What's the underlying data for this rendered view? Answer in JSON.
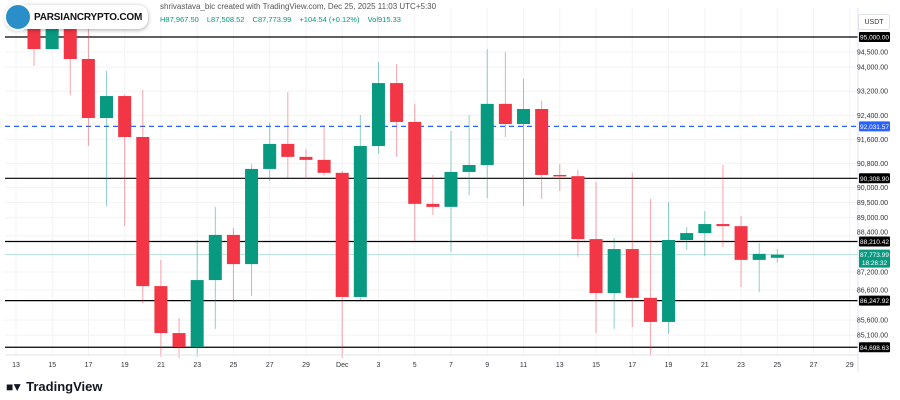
{
  "header": {
    "attribution": "shrivastava_bic created with TradingView.com, Dec 25, 2025 11:03 UTC+5:30",
    "ohlc": {
      "high": "H87,967.50",
      "low": "L87,508.52",
      "close": "C87,773.99",
      "change": "+104.54 (+0.12%)",
      "volume": "Vol915.33"
    }
  },
  "watermark": "PARSIANCRYPTO.COM",
  "footer_brand": "TradingView",
  "currency_button": "USDT",
  "colors": {
    "up": "#089981",
    "down": "#f23645",
    "level": "#000000",
    "dashed": "#2962ff",
    "current": "#089981"
  },
  "chart_data": {
    "type": "candlestick",
    "x_tick_labels": [
      "13",
      "15",
      "17",
      "19",
      "21",
      "23",
      "25",
      "27",
      "29",
      "Dec",
      "3",
      "5",
      "7",
      "9",
      "11",
      "13",
      "15",
      "17",
      "19",
      "21",
      "23",
      "25",
      "27",
      "29"
    ],
    "y_tick_labels": [
      "94,500.00",
      "94,000.00",
      "93,200.00",
      "92,400.00",
      "91,600.00",
      "90,800.00",
      "90,000.00",
      "89,500.00",
      "89,000.00",
      "88,400.00",
      "87,200.00",
      "86,600.00",
      "85,600.00",
      "85,100.00"
    ],
    "y_ticks": [
      94500,
      94000,
      93200,
      92400,
      91600,
      90800,
      90000,
      89500,
      89000,
      88400,
      87200,
      86600,
      85600,
      85100
    ],
    "ylim": [
      84200,
      96100
    ],
    "horizontal_levels": [
      {
        "value": 95000.0,
        "label": "95,000.00",
        "style": "solid"
      },
      {
        "value": 90308.9,
        "label": "90,308.90",
        "style": "solid"
      },
      {
        "value": 88210.42,
        "label": "88,210.42",
        "style": "solid"
      },
      {
        "value": 86247.92,
        "label": "86,247.92",
        "style": "solid"
      },
      {
        "value": 84698.63,
        "label": "84,698.63",
        "style": "solid"
      },
      {
        "value": 92031.57,
        "label": "92,031.57",
        "style": "dashed"
      }
    ],
    "current_price": {
      "value": 87773.99,
      "label": "87,773.99",
      "countdown": "18:26:32"
    },
    "candles": [
      {
        "date": "Nov 14",
        "o": 95560,
        "h": 96000,
        "l": 94040,
        "c": 94600
      },
      {
        "date": "Nov 15",
        "o": 94600,
        "h": 96000,
        "l": 94600,
        "c": 95560
      },
      {
        "date": "Nov 16",
        "o": 95560,
        "h": 96000,
        "l": 93070,
        "c": 94270
      },
      {
        "date": "Nov 17",
        "o": 94270,
        "h": 95400,
        "l": 91380,
        "c": 92310
      },
      {
        "date": "Nov 18",
        "o": 92310,
        "h": 93870,
        "l": 89390,
        "c": 93040
      },
      {
        "date": "Nov 19",
        "o": 93040,
        "h": 93100,
        "l": 88720,
        "c": 91680
      },
      {
        "date": "Nov 20",
        "o": 91680,
        "h": 93240,
        "l": 86170,
        "c": 86730
      },
      {
        "date": "Nov 21",
        "o": 86730,
        "h": 87600,
        "l": 84380,
        "c": 85170
      },
      {
        "date": "Nov 22",
        "o": 85170,
        "h": 85670,
        "l": 84340,
        "c": 84710
      },
      {
        "date": "Nov 23",
        "o": 84710,
        "h": 88260,
        "l": 84380,
        "c": 86930
      },
      {
        "date": "Nov 24",
        "o": 86930,
        "h": 89360,
        "l": 85310,
        "c": 88430
      },
      {
        "date": "Nov 25",
        "o": 88430,
        "h": 88660,
        "l": 86200,
        "c": 87460
      },
      {
        "date": "Nov 26",
        "o": 87460,
        "h": 90780,
        "l": 86400,
        "c": 90620
      },
      {
        "date": "Nov 27",
        "o": 90620,
        "h": 92150,
        "l": 90220,
        "c": 91450
      },
      {
        "date": "Nov 28",
        "o": 91450,
        "h": 93170,
        "l": 90320,
        "c": 91020
      },
      {
        "date": "Nov 29",
        "o": 91020,
        "h": 91280,
        "l": 90290,
        "c": 90920
      },
      {
        "date": "Nov 30",
        "o": 90920,
        "h": 92080,
        "l": 90400,
        "c": 90490
      },
      {
        "date": "Dec 1",
        "o": 90490,
        "h": 90550,
        "l": 84340,
        "c": 86370
      },
      {
        "date": "Dec 2",
        "o": 86370,
        "h": 92410,
        "l": 86270,
        "c": 91380
      },
      {
        "date": "Dec 3",
        "o": 91380,
        "h": 94170,
        "l": 91120,
        "c": 93470
      },
      {
        "date": "Dec 4",
        "o": 93470,
        "h": 94100,
        "l": 91020,
        "c": 92180
      },
      {
        "date": "Dec 5",
        "o": 92180,
        "h": 92780,
        "l": 88230,
        "c": 89460
      },
      {
        "date": "Dec 6",
        "o": 89460,
        "h": 90420,
        "l": 89090,
        "c": 89360
      },
      {
        "date": "Dec 7",
        "o": 89360,
        "h": 91880,
        "l": 87860,
        "c": 90520
      },
      {
        "date": "Dec 8",
        "o": 90520,
        "h": 92410,
        "l": 89750,
        "c": 90750
      },
      {
        "date": "Dec 9",
        "o": 90750,
        "h": 94600,
        "l": 89650,
        "c": 92780
      },
      {
        "date": "Dec 10",
        "o": 92780,
        "h": 94500,
        "l": 91680,
        "c": 92110
      },
      {
        "date": "Dec 11",
        "o": 92110,
        "h": 93610,
        "l": 89390,
        "c": 92610
      },
      {
        "date": "Dec 12",
        "o": 92610,
        "h": 92880,
        "l": 89620,
        "c": 90420
      },
      {
        "date": "Dec 13",
        "o": 90420,
        "h": 90780,
        "l": 89890,
        "c": 90380
      },
      {
        "date": "Dec 14",
        "o": 90380,
        "h": 90590,
        "l": 87700,
        "c": 88290
      },
      {
        "date": "Dec 15",
        "o": 88290,
        "h": 90190,
        "l": 85170,
        "c": 86500
      },
      {
        "date": "Dec 16",
        "o": 86500,
        "h": 88330,
        "l": 85310,
        "c": 87960
      },
      {
        "date": "Dec 17",
        "o": 87960,
        "h": 90490,
        "l": 85370,
        "c": 86340
      },
      {
        "date": "Dec 18",
        "o": 86340,
        "h": 89620,
        "l": 84440,
        "c": 85540
      },
      {
        "date": "Dec 19",
        "o": 85540,
        "h": 89520,
        "l": 85140,
        "c": 88260
      },
      {
        "date": "Dec 20",
        "o": 88260,
        "h": 88690,
        "l": 87930,
        "c": 88490
      },
      {
        "date": "Dec 21",
        "o": 88490,
        "h": 89220,
        "l": 87730,
        "c": 88790
      },
      {
        "date": "Dec 22",
        "o": 88790,
        "h": 90750,
        "l": 88030,
        "c": 88720
      },
      {
        "date": "Dec 23",
        "o": 88720,
        "h": 89060,
        "l": 86700,
        "c": 87600
      },
      {
        "date": "Dec 24",
        "o": 87600,
        "h": 88160,
        "l": 86530,
        "c": 87800
      },
      {
        "date": "Dec 25",
        "o": 87669.45,
        "h": 87967.5,
        "l": 87508.52,
        "c": 87773.99
      }
    ]
  }
}
